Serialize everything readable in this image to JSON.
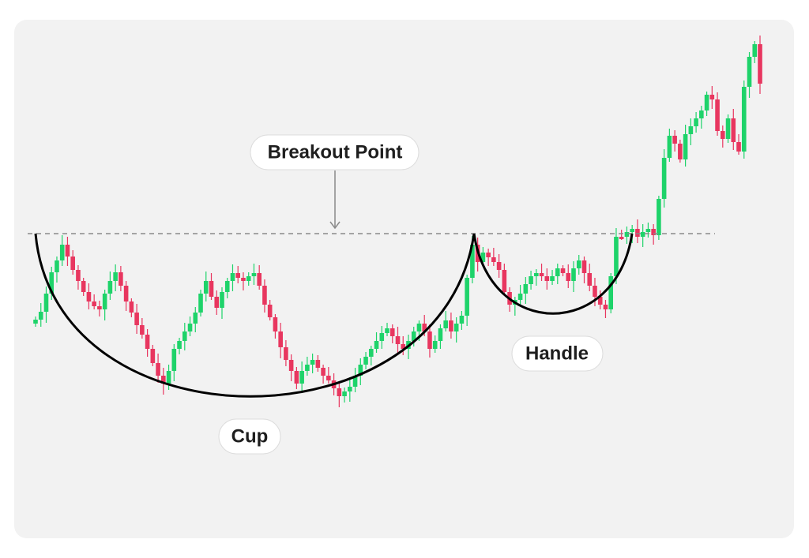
{
  "annotations": {
    "breakout": "Breakout Point",
    "cup": "Cup",
    "handle": "Handle"
  }
}
